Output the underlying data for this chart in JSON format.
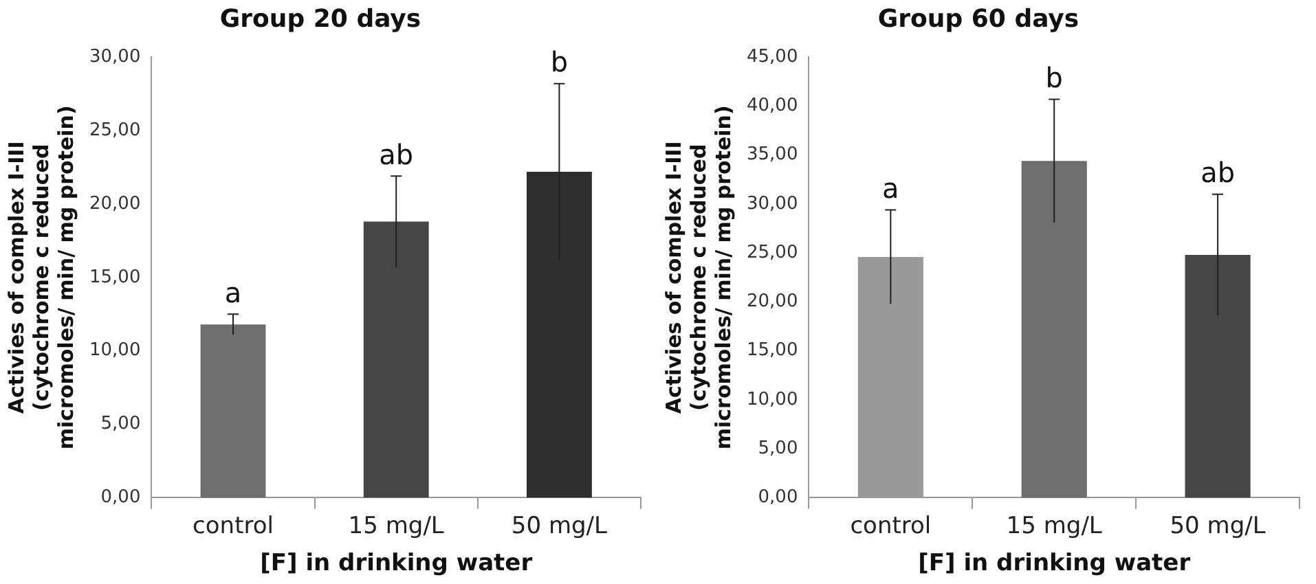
{
  "chart_data": [
    {
      "type": "bar",
      "title": "Group 20 days",
      "xlabel": "[F] in drinking water",
      "ylabel": "Activies of complex I-III (cytochrome c reduced micromoles/ min/ mg protein)",
      "categories": [
        "control",
        "15 mg/L",
        "50 mg/L"
      ],
      "values": [
        11.8,
        18.8,
        22.2
      ],
      "errors": [
        0.7,
        3.1,
        6.0
      ],
      "colors": [
        "#6e6e6e",
        "#464646",
        "#2e2e2e"
      ],
      "ylim": [
        0,
        30
      ],
      "yticks": [
        {
          "value": 0,
          "label": "0,00"
        },
        {
          "value": 5,
          "label": "5,00"
        },
        {
          "value": 10,
          "label": "10,00"
        },
        {
          "value": 15,
          "label": "15,00"
        },
        {
          "value": 20,
          "label": "20,00"
        },
        {
          "value": 25,
          "label": "25,00"
        },
        {
          "value": 30,
          "label": "30,00"
        }
      ],
      "annotations": [
        {
          "text": "a",
          "x": "control",
          "y": 12.5
        },
        {
          "text": "ab",
          "x": "15 mg/L",
          "y": 21.9
        },
        {
          "text": "b",
          "x": "50 mg/L",
          "y": 28.2
        }
      ]
    },
    {
      "type": "bar",
      "title": "Group 60 days",
      "xlabel": "[F] in drinking water",
      "ylabel": "Activies of complex I-III (cytochrome c reduced micromoles/ min/ mg protein)",
      "categories": [
        "control",
        "15 mg/L",
        "50 mg/L"
      ],
      "values": [
        24.6,
        34.4,
        24.8
      ],
      "errors": [
        4.8,
        6.3,
        6.2
      ],
      "colors": [
        "#999999",
        "#6e6e6e",
        "#464646"
      ],
      "ylim": [
        0,
        45
      ],
      "yticks": [
        {
          "value": 0,
          "label": "0,00"
        },
        {
          "value": 5,
          "label": "5,00"
        },
        {
          "value": 10,
          "label": "10,00"
        },
        {
          "value": 15,
          "label": "15,00"
        },
        {
          "value": 20,
          "label": "20,00"
        },
        {
          "value": 25,
          "label": "25,00"
        },
        {
          "value": 30,
          "label": "30,00"
        },
        {
          "value": 35,
          "label": "35,00"
        },
        {
          "value": 40,
          "label": "40,00"
        },
        {
          "value": 45,
          "label": "45,00"
        }
      ],
      "annotations": [
        {
          "text": "a",
          "x": "control",
          "y": 29.4
        },
        {
          "text": "b",
          "x": "15 mg/L",
          "y": 40.7
        },
        {
          "text": "ab",
          "x": "50 mg/L",
          "y": 31.0
        }
      ]
    }
  ]
}
